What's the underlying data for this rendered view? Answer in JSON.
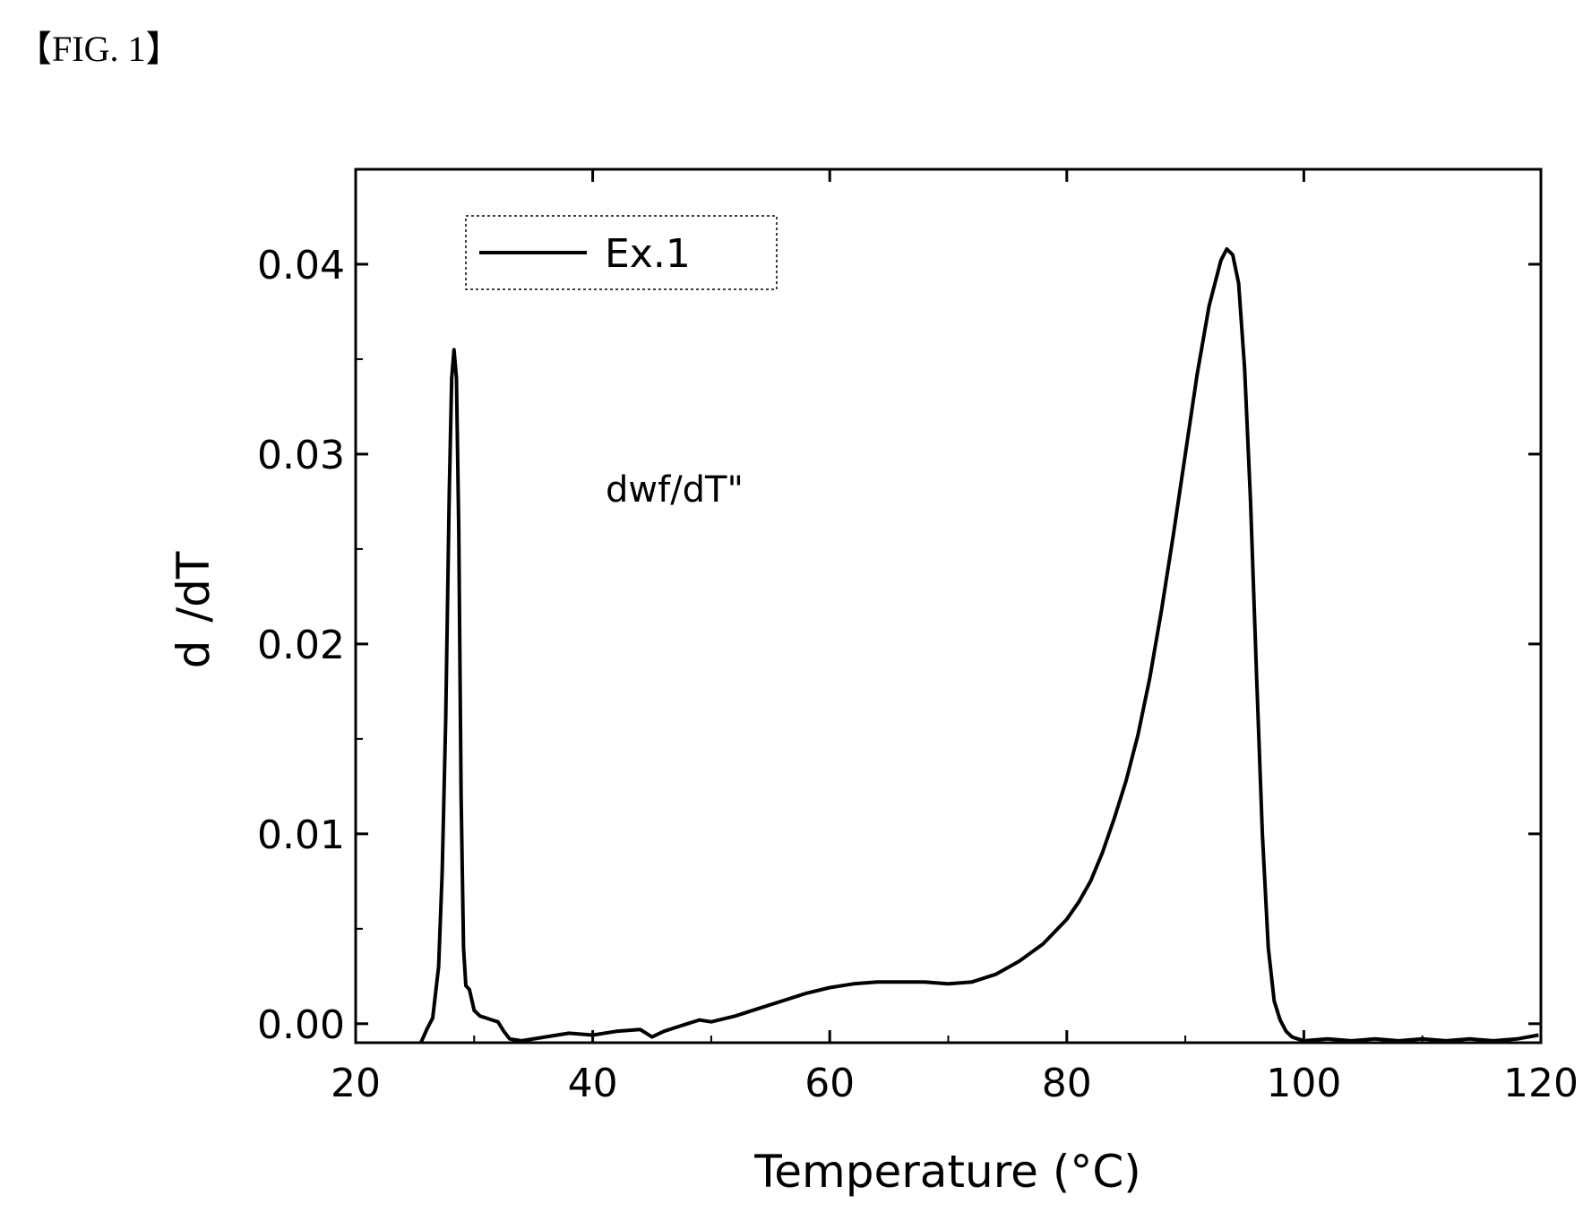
{
  "figure": {
    "label": "【FIG. 1】"
  },
  "chart_data": {
    "type": "line",
    "title": "",
    "xlabel": "Temperature (°C)",
    "ylabel": "d  /dT",
    "xlim": [
      20,
      120
    ],
    "ylim": [
      -0.001,
      0.045
    ],
    "xticks": [
      20,
      40,
      60,
      80,
      100,
      120
    ],
    "xtick_labels": [
      "20",
      "40",
      "60",
      "80",
      "100",
      "120"
    ],
    "yticks": [
      0.0,
      0.01,
      0.02,
      0.03,
      0.04
    ],
    "ytick_labels": [
      "0.00",
      "0.01",
      "0.02",
      "0.03",
      "0.04"
    ],
    "annotation": "dwf/dT\"",
    "legend": {
      "position": "top-left",
      "entries": [
        "Ex.1"
      ]
    },
    "grid": false,
    "series": [
      {
        "name": "Ex.1",
        "x": [
          25.5,
          26.0,
          26.5,
          27.0,
          27.3,
          27.6,
          27.9,
          28.1,
          28.3,
          28.5,
          28.7,
          28.9,
          29.1,
          29.3,
          29.6,
          30.0,
          30.5,
          31.0,
          31.5,
          32.0,
          32.5,
          33.0,
          34.0,
          36.0,
          38.0,
          40.0,
          42.0,
          44.0,
          45.0,
          46.0,
          47.0,
          48.0,
          49.0,
          50.0,
          52.0,
          54.0,
          56.0,
          58.0,
          60.0,
          62.0,
          64.0,
          66.0,
          68.0,
          70.0,
          72.0,
          74.0,
          76.0,
          78.0,
          80.0,
          81.0,
          82.0,
          83.0,
          84.0,
          85.0,
          86.0,
          87.0,
          88.0,
          89.0,
          90.0,
          91.0,
          92.0,
          93.0,
          93.5,
          94.0,
          94.5,
          95.0,
          95.5,
          96.0,
          96.5,
          97.0,
          97.5,
          98.0,
          98.5,
          99.0,
          99.5,
          100.0,
          102.0,
          104.0,
          106.0,
          108.0,
          110.0,
          112.0,
          114.0,
          116.0,
          118.0,
          119.8
        ],
        "y": [
          -0.001,
          -0.0003,
          0.0003,
          0.003,
          0.008,
          0.016,
          0.028,
          0.034,
          0.0355,
          0.034,
          0.026,
          0.012,
          0.004,
          0.002,
          0.0018,
          0.0007,
          0.0004,
          0.0003,
          0.0002,
          0.0001,
          -0.0004,
          -0.0008,
          -0.0009,
          -0.0007,
          -0.0005,
          -0.0006,
          -0.0004,
          -0.0003,
          -0.0007,
          -0.0004,
          -0.0002,
          0.0,
          0.0002,
          0.0001,
          0.0004,
          0.0008,
          0.0012,
          0.0016,
          0.0019,
          0.0021,
          0.0022,
          0.0022,
          0.0022,
          0.0021,
          0.0022,
          0.0026,
          0.0033,
          0.0042,
          0.0055,
          0.0064,
          0.0075,
          0.009,
          0.0108,
          0.0128,
          0.0152,
          0.0182,
          0.0218,
          0.0258,
          0.03,
          0.0342,
          0.0378,
          0.0402,
          0.0408,
          0.0405,
          0.039,
          0.0345,
          0.0275,
          0.0185,
          0.01,
          0.004,
          0.0012,
          0.0002,
          -0.0004,
          -0.0007,
          -0.0008,
          -0.0009,
          -0.0008,
          -0.0009,
          -0.0008,
          -0.0009,
          -0.0008,
          -0.0009,
          -0.0008,
          -0.0009,
          -0.0008,
          -0.0006
        ]
      }
    ]
  }
}
